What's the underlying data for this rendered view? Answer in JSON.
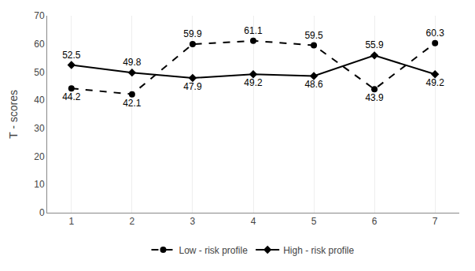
{
  "chart_data": {
    "type": "line",
    "ylabel": "T - scores",
    "x": [
      1,
      2,
      3,
      4,
      5,
      6,
      7
    ],
    "series": [
      {
        "name": "Low - risk profile",
        "color": "#000000",
        "values": [
          44.2,
          42.1,
          59.9,
          61.1,
          59.5,
          43.9,
          60.3
        ],
        "marker": "circle",
        "line_style": "dash"
      },
      {
        "name": "High - risk profile",
        "color": "#000000",
        "values": [
          52.5,
          49.8,
          47.9,
          49.2,
          48.6,
          55.9,
          49.2
        ],
        "marker": "diamond",
        "line_style": "solid"
      }
    ],
    "xlim": [
      0.6,
      7.4
    ],
    "xticks": [
      1,
      2,
      3,
      4,
      5,
      6,
      7
    ],
    "ylim": [
      0,
      70
    ],
    "yticks": [
      0,
      10,
      20,
      30,
      40,
      50,
      60,
      70
    ],
    "grid": "x",
    "legend": "bottom",
    "data_labels": true
  }
}
